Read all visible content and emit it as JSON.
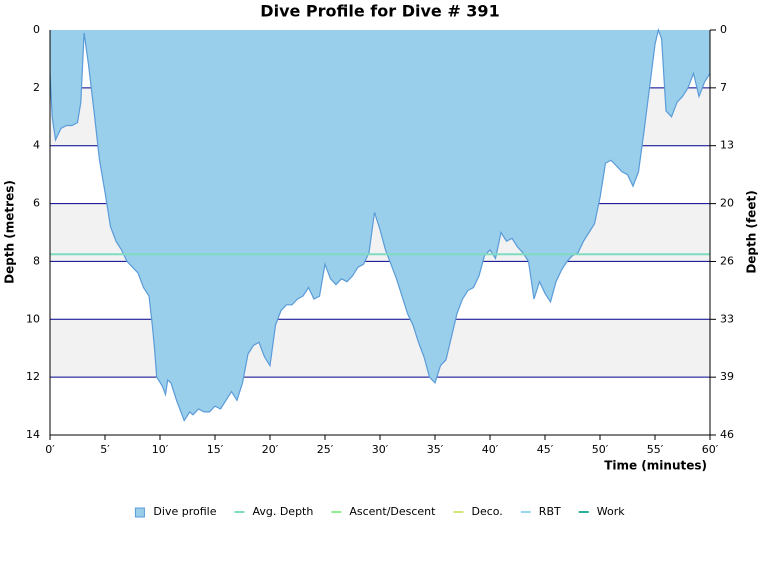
{
  "chart_data": {
    "type": "area",
    "title": "Dive Profile for Dive # 391",
    "x_label": "Time (minutes)",
    "y_label": "Depth (metres)",
    "y2_label": "Depth (feet)",
    "xlim": [
      0,
      60
    ],
    "xticks": [
      {
        "value": 0,
        "label": "0′"
      },
      {
        "value": 5,
        "label": "5′"
      },
      {
        "value": 10,
        "label": "10′"
      },
      {
        "value": 15,
        "label": "15′"
      },
      {
        "value": 20,
        "label": "20′"
      },
      {
        "value": 25,
        "label": "25′"
      },
      {
        "value": 30,
        "label": "30′"
      },
      {
        "value": 35,
        "label": "35′"
      },
      {
        "value": 40,
        "label": "40′"
      },
      {
        "value": 45,
        "label": "45′"
      },
      {
        "value": 50,
        "label": "50′"
      },
      {
        "value": 55,
        "label": "55′"
      },
      {
        "value": 60,
        "label": "60′"
      }
    ],
    "ylim": [
      0,
      14
    ],
    "yticks": [
      0,
      2,
      4,
      6,
      8,
      10,
      12,
      14
    ],
    "y_inverted": true,
    "y2lim": [
      0,
      45.93
    ],
    "y2ticks": [
      0,
      {
        "value": 6.56,
        "label": "7"
      },
      {
        "value": 13.12,
        "label": "13"
      },
      {
        "value": 19.69,
        "label": "20"
      },
      {
        "value": 26.25,
        "label": "26"
      },
      {
        "value": 32.81,
        "label": "33"
      },
      {
        "value": 39.37,
        "label": "39"
      },
      {
        "value": 45.93,
        "label": "46"
      }
    ],
    "grid": true,
    "x": [
      0,
      0.2,
      0.5,
      1,
      1.5,
      2,
      2.5,
      2.8,
      3.1,
      3.5,
      4,
      4.5,
      5,
      5.5,
      6,
      6.5,
      7,
      7.5,
      8,
      8.5,
      9,
      9.3,
      9.5,
      9.7,
      10.2,
      10.5,
      10.7,
      11,
      11.5,
      12,
      12.2,
      12.7,
      13,
      13.5,
      14,
      14.5,
      15,
      15.5,
      16,
      16.5,
      17,
      17.5,
      18,
      18.5,
      19,
      19.5,
      20,
      20.5,
      21,
      21.5,
      22,
      22.5,
      23,
      23.5,
      24,
      24.5,
      25,
      25.5,
      26,
      26.5,
      27,
      27.5,
      28,
      28.5,
      29,
      29.5,
      30,
      30.5,
      31,
      31.5,
      32,
      32.5,
      33,
      33.5,
      34,
      34.5,
      35,
      35.5,
      36,
      36.5,
      37,
      37.5,
      38,
      38.5,
      39,
      39.5,
      40,
      40.5,
      41,
      41.5,
      42,
      42.5,
      43,
      43.5,
      44,
      44.5,
      45,
      45.5,
      46,
      46.5,
      47,
      47.5,
      48,
      48.5,
      49,
      49.5,
      50,
      50.5,
      51,
      51.5,
      52,
      52.5,
      53,
      53.5,
      54,
      54.5,
      55,
      55.3,
      55.6,
      56,
      56.5,
      57,
      57.5,
      58,
      58.5,
      59,
      59.5,
      60
    ],
    "series": [
      {
        "name": "Dive profile",
        "color": "#99cfea",
        "values": [
          1.5,
          3.0,
          3.8,
          3.4,
          3.3,
          3.3,
          3.2,
          2.5,
          0.1,
          1.2,
          2.8,
          4.5,
          5.6,
          6.8,
          7.3,
          7.6,
          8.0,
          8.2,
          8.4,
          8.9,
          9.2,
          10.2,
          11.0,
          12.0,
          12.3,
          12.6,
          12.1,
          12.2,
          12.8,
          13.3,
          13.5,
          13.2,
          13.3,
          13.1,
          13.2,
          13.2,
          13.0,
          13.1,
          12.8,
          12.5,
          12.8,
          12.2,
          11.2,
          10.9,
          10.8,
          11.3,
          11.6,
          10.2,
          9.7,
          9.5,
          9.5,
          9.3,
          9.2,
          8.9,
          9.3,
          9.2,
          8.1,
          8.6,
          8.8,
          8.6,
          8.7,
          8.5,
          8.2,
          8.1,
          7.7,
          6.3,
          6.9,
          7.6,
          8.1,
          8.6,
          9.2,
          9.8,
          10.2,
          10.8,
          11.3,
          12.0,
          12.2,
          11.6,
          11.4,
          10.6,
          9.8,
          9.3,
          9.0,
          8.9,
          8.5,
          7.8,
          7.6,
          7.9,
          7.0,
          7.3,
          7.2,
          7.5,
          7.7,
          8.0,
          9.3,
          8.7,
          9.1,
          9.4,
          8.7,
          8.3,
          8.0,
          7.8,
          7.7,
          7.3,
          7.0,
          6.7,
          5.8,
          4.6,
          4.5,
          4.7,
          4.9,
          5.0,
          5.4,
          4.9,
          3.5,
          2.0,
          0.5,
          0.0,
          0.3,
          2.8,
          3.0,
          2.5,
          2.3,
          2.0,
          1.5,
          2.3,
          1.8,
          1.5
        ]
      },
      {
        "name": "Avg. Depth",
        "color": "#7fdcc0",
        "value": 7.75
      },
      {
        "name": "Ascent/Descent",
        "color": "#90ee90"
      },
      {
        "name": "Deco.",
        "color": "#d4e67a"
      },
      {
        "name": "RBT",
        "color": "#99d5f0"
      },
      {
        "name": "Work",
        "color": "#2ab09a"
      }
    ]
  }
}
